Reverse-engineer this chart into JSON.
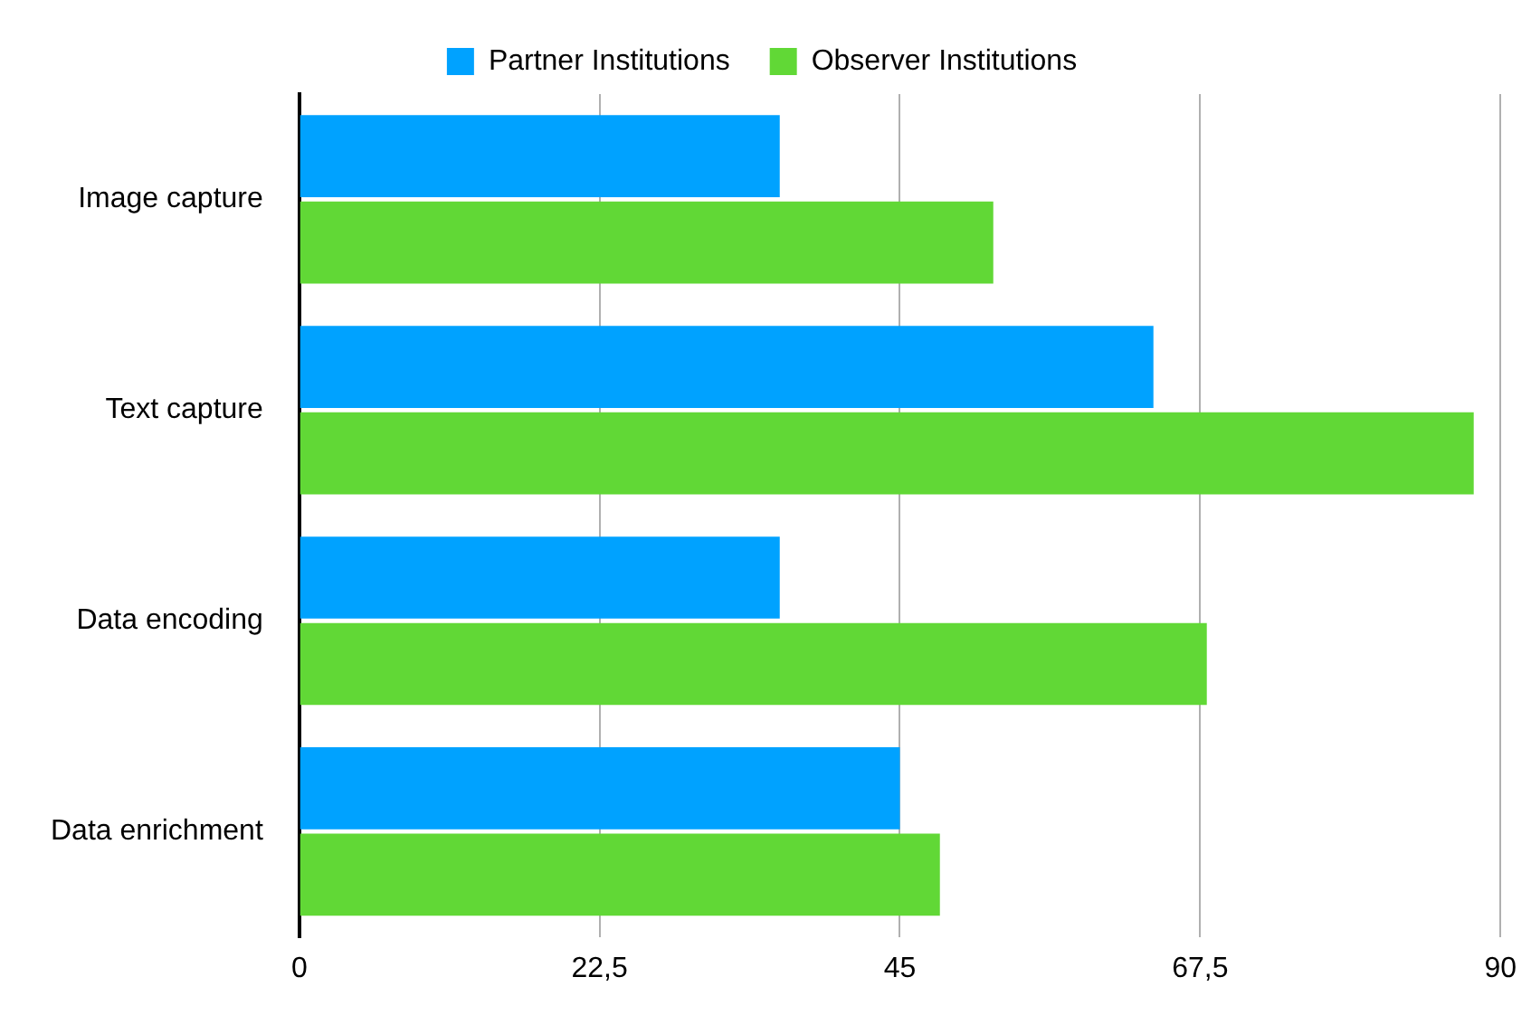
{
  "chart_data": {
    "type": "bar",
    "orientation": "horizontal",
    "categories": [
      "Image capture",
      "Text capture",
      "Data encoding",
      "Data enrichment"
    ],
    "series": [
      {
        "name": "Partner Institutions",
        "color": "#00a2ff",
        "values": [
          36,
          64,
          36,
          45
        ]
      },
      {
        "name": "Observer Institutions",
        "color": "#61d836",
        "values": [
          52,
          88,
          68,
          48
        ]
      }
    ],
    "xlim": [
      0,
      90
    ],
    "xticks": [
      0,
      {
        "value": 22.5,
        "label": "22,5"
      },
      45,
      {
        "value": 67.5,
        "label": "67,5"
      },
      90
    ],
    "grid": "x",
    "legend": "top"
  }
}
